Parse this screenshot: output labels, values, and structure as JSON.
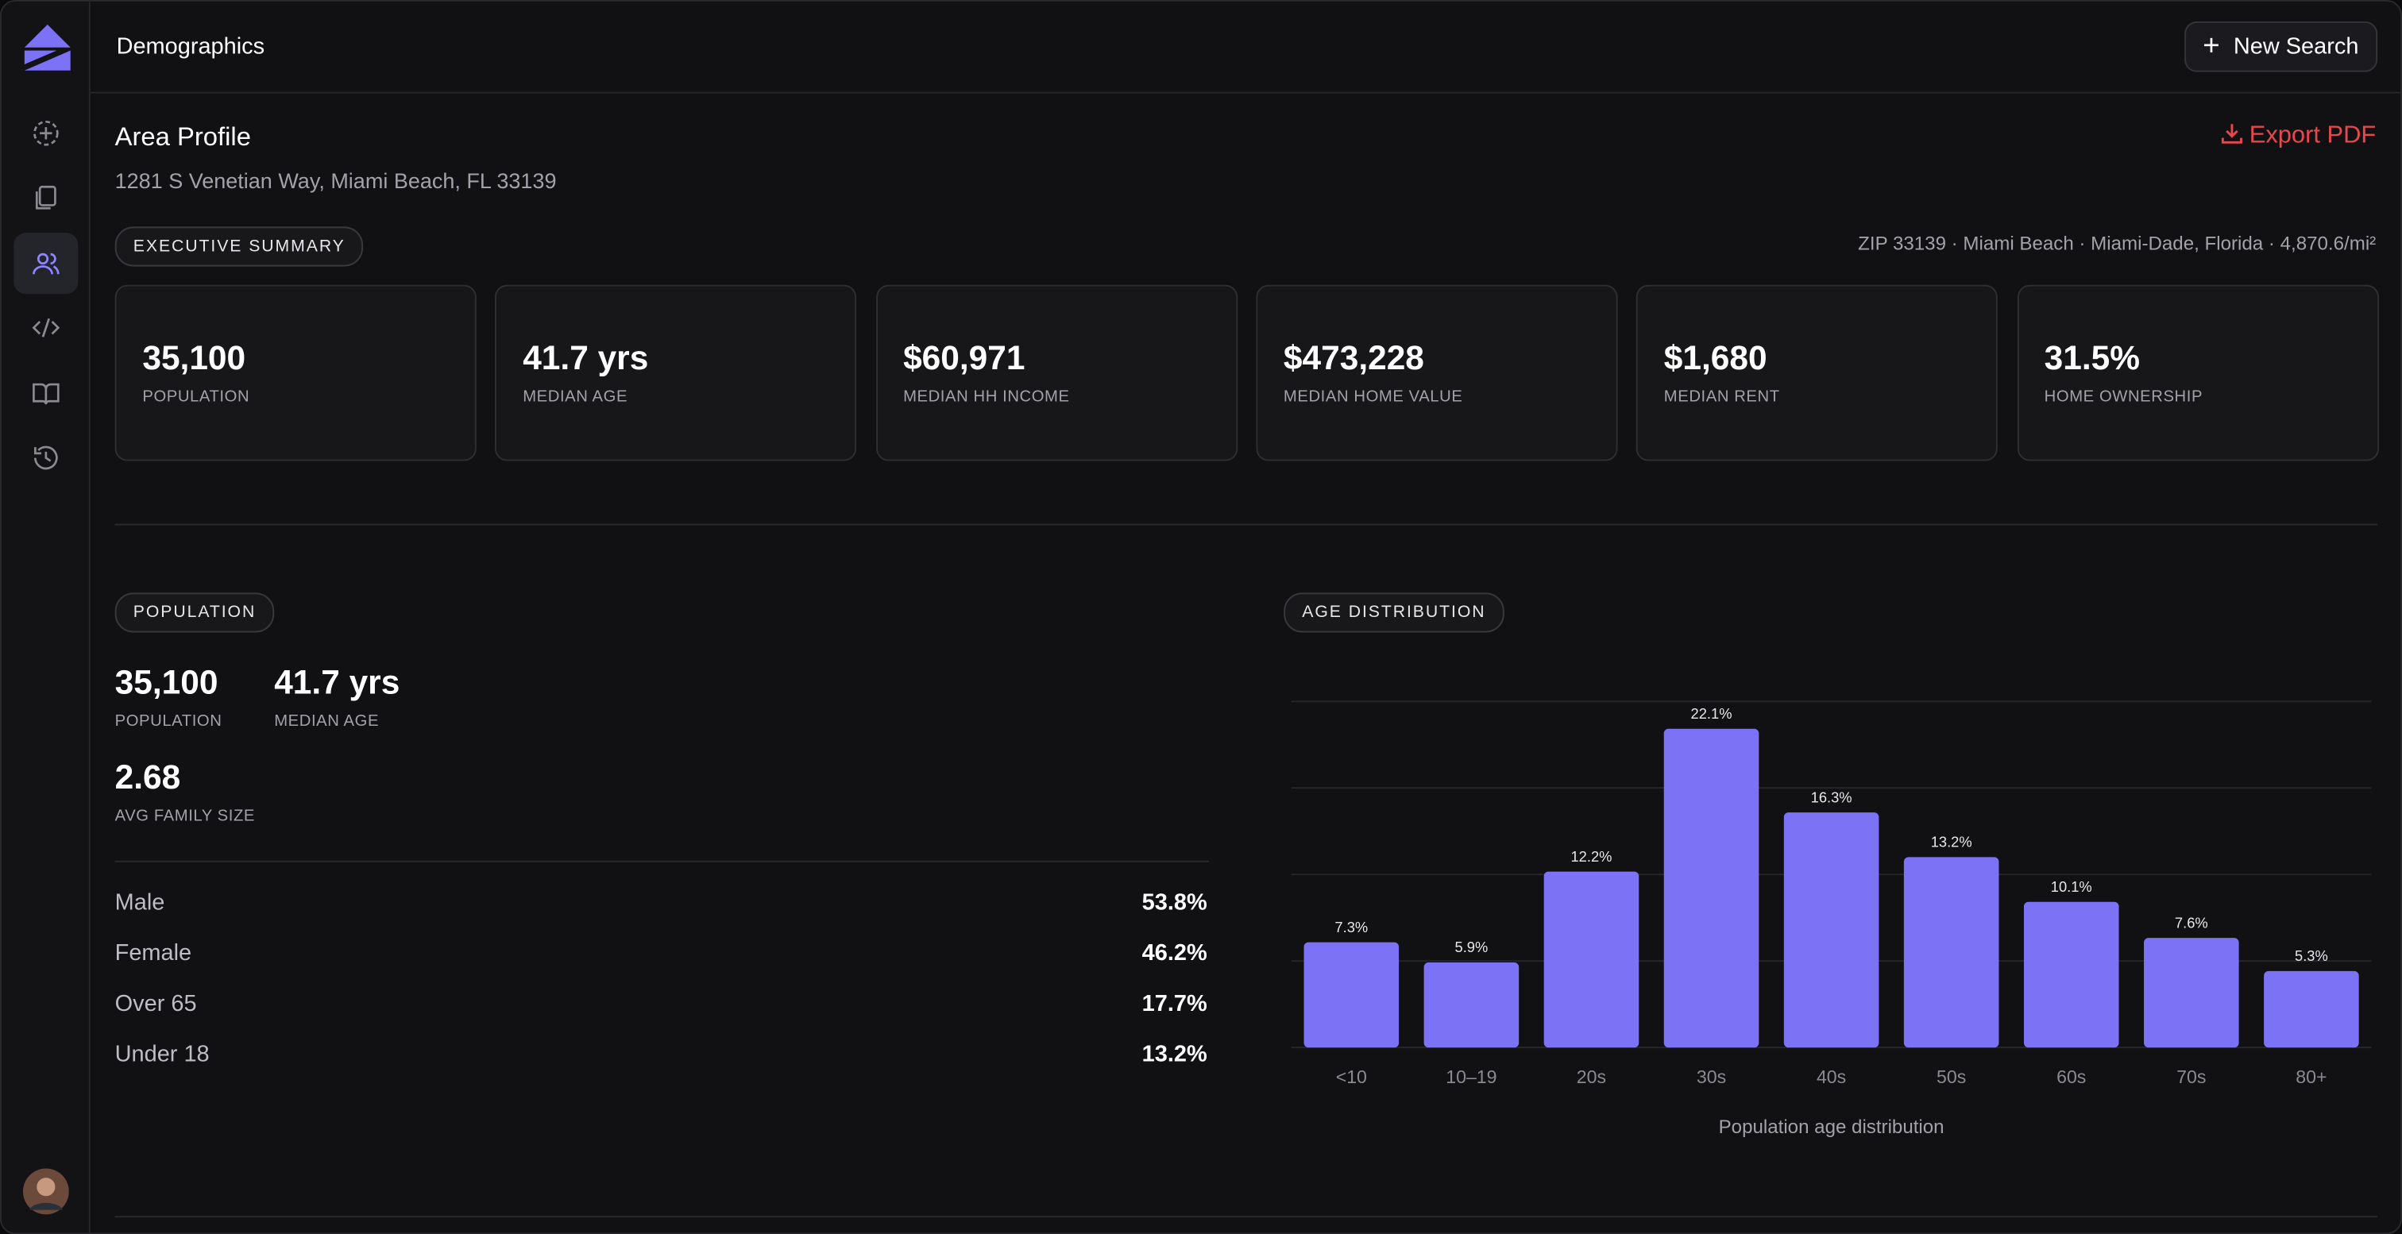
{
  "header": {
    "title": "Demographics",
    "button": "New Search"
  },
  "profile": {
    "title": "Area Profile",
    "address": "1281 S Venetian Way, Miami Beach, FL 33139",
    "export": "Export PDF"
  },
  "summary": {
    "badge": "EXECUTIVE SUMMARY",
    "location": "ZIP 33139 · Miami Beach · Miami-Dade, Florida · 4,870.6/mi²",
    "cards": [
      {
        "value": "35,100",
        "label": "POPULATION"
      },
      {
        "value": "41.7 yrs",
        "label": "MEDIAN AGE"
      },
      {
        "value": "$60,971",
        "label": "MEDIAN HH INCOME"
      },
      {
        "value": "$473,228",
        "label": "MEDIAN HOME VALUE"
      },
      {
        "value": "$1,680",
        "label": "MEDIAN RENT"
      },
      {
        "value": "31.5%",
        "label": "HOME OWNERSHIP"
      }
    ]
  },
  "population": {
    "badge": "POPULATION",
    "stats": [
      {
        "value": "35,100",
        "label": "POPULATION"
      },
      {
        "value": "41.7 yrs",
        "label": "MEDIAN AGE"
      },
      {
        "value": "2.68",
        "label": "AVG FAMILY SIZE"
      }
    ],
    "rows": [
      {
        "label": "Male",
        "value": "53.8%"
      },
      {
        "label": "Female",
        "value": "46.2%"
      },
      {
        "label": "Over 65",
        "value": "17.7%"
      },
      {
        "label": "Under 18",
        "value": "13.2%"
      }
    ]
  },
  "age_distribution": {
    "badge": "AGE DISTRIBUTION",
    "chart_data": {
      "type": "bar",
      "caption": "Population age distribution",
      "categories": [
        "<10",
        "10–19",
        "20s",
        "30s",
        "40s",
        "50s",
        "60s",
        "70s",
        "80+"
      ],
      "values": [
        7.3,
        5.9,
        12.2,
        22.1,
        16.3,
        13.2,
        10.1,
        7.6,
        5.3
      ],
      "value_labels": [
        "7.3%",
        "5.9%",
        "12.2%",
        "22.1%",
        "16.3%",
        "13.2%",
        "10.1%",
        "7.6%",
        "5.3%"
      ],
      "color": "#7c72f5",
      "ylim": [
        0,
        24
      ],
      "yticks": [
        0,
        6,
        12,
        18,
        24
      ],
      "grid": true
    }
  }
}
